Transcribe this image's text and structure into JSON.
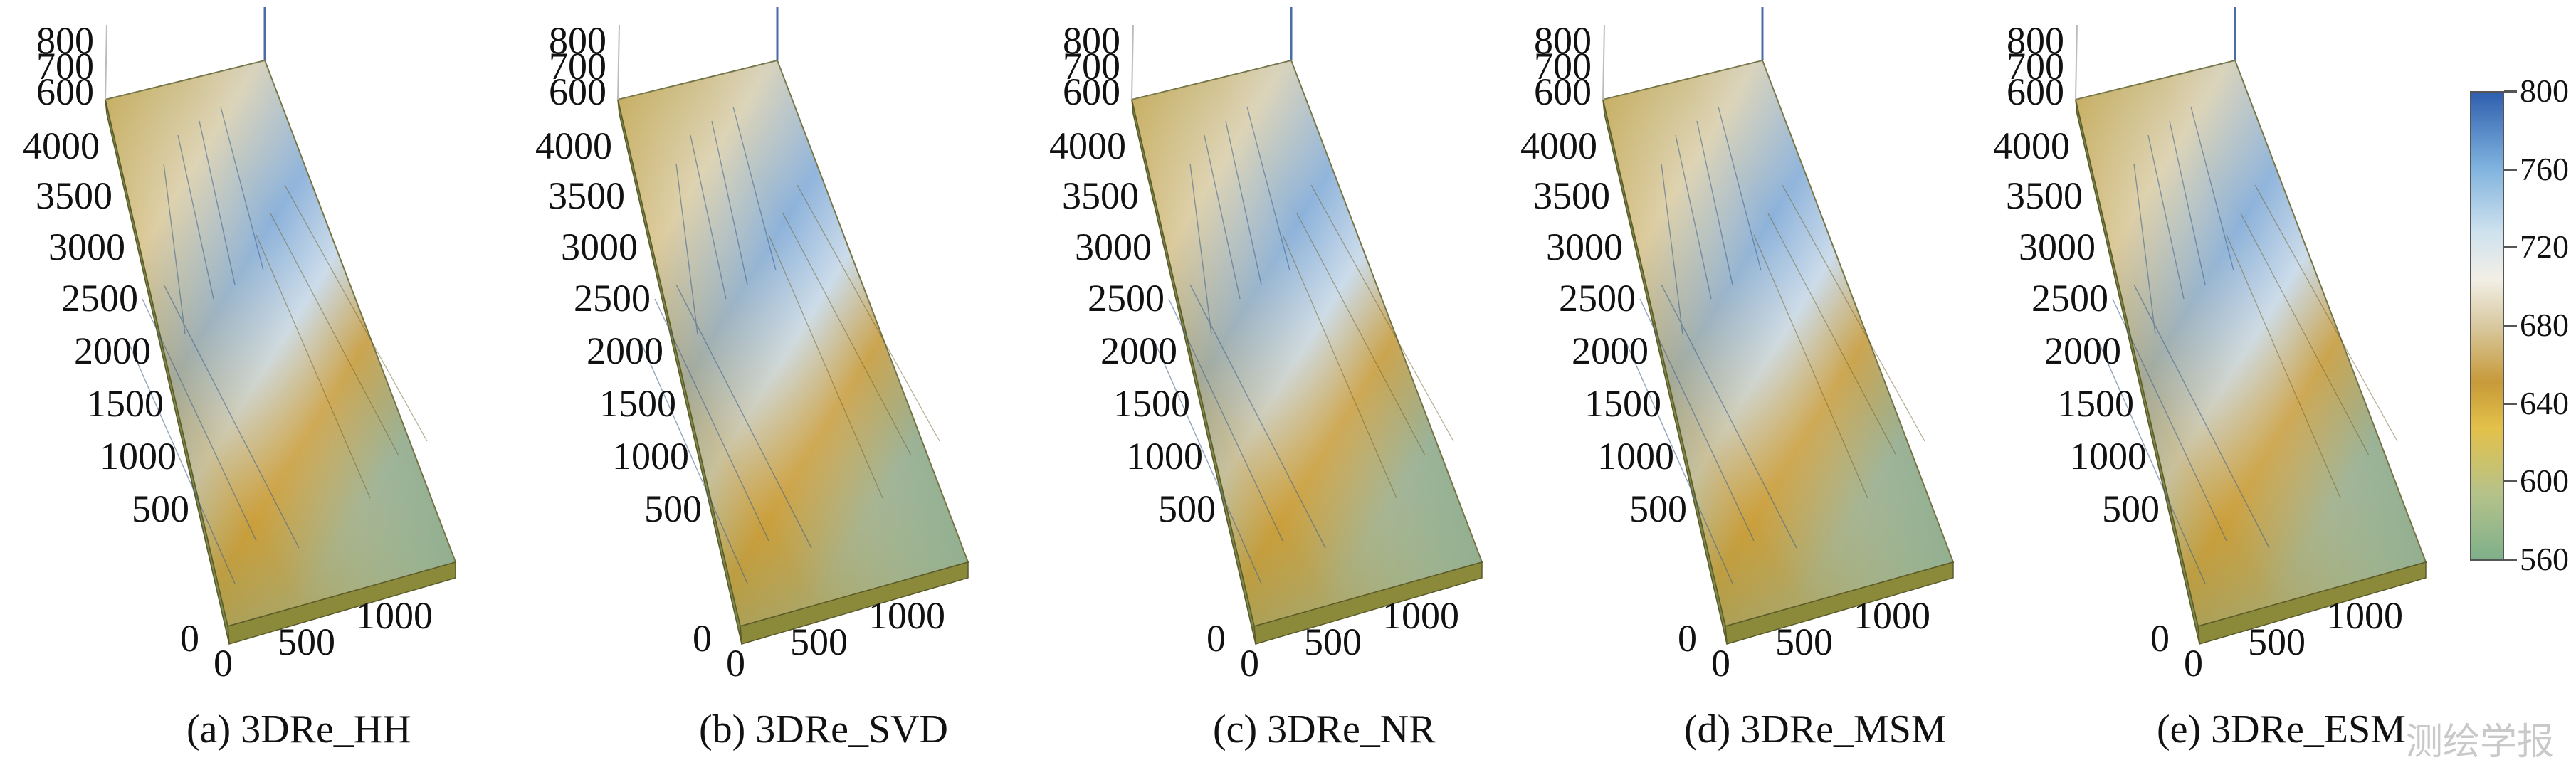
{
  "panels": [
    {
      "caption": "(a) 3DRe_HH",
      "variant": "hh"
    },
    {
      "caption": "(b) 3DRe_SVD",
      "variant": "svd"
    },
    {
      "caption": "(c) 3DRe_NR",
      "variant": "nr"
    },
    {
      "caption": "(d) 3DRe_MSM",
      "variant": "msm"
    },
    {
      "caption": "(e) 3DRe_ESM",
      "variant": "esm"
    }
  ],
  "axes": {
    "z_ticks": [
      "800",
      "700",
      "600"
    ],
    "y_ticks": [
      "4000",
      "3500",
      "3000",
      "2500",
      "2000",
      "1500",
      "1000",
      "500",
      "0"
    ],
    "x_ticks": [
      "0",
      "500",
      "1000"
    ]
  },
  "colorbar": {
    "ticks": [
      "800",
      "760",
      "720",
      "680",
      "640",
      "600",
      "560"
    ],
    "colors": [
      "#2f5fae",
      "#7fb2de",
      "#cfe2ee",
      "#f2efe6",
      "#c79a3a",
      "#e3c14a",
      "#7fb08a"
    ]
  },
  "watermark": "测绘学报"
}
